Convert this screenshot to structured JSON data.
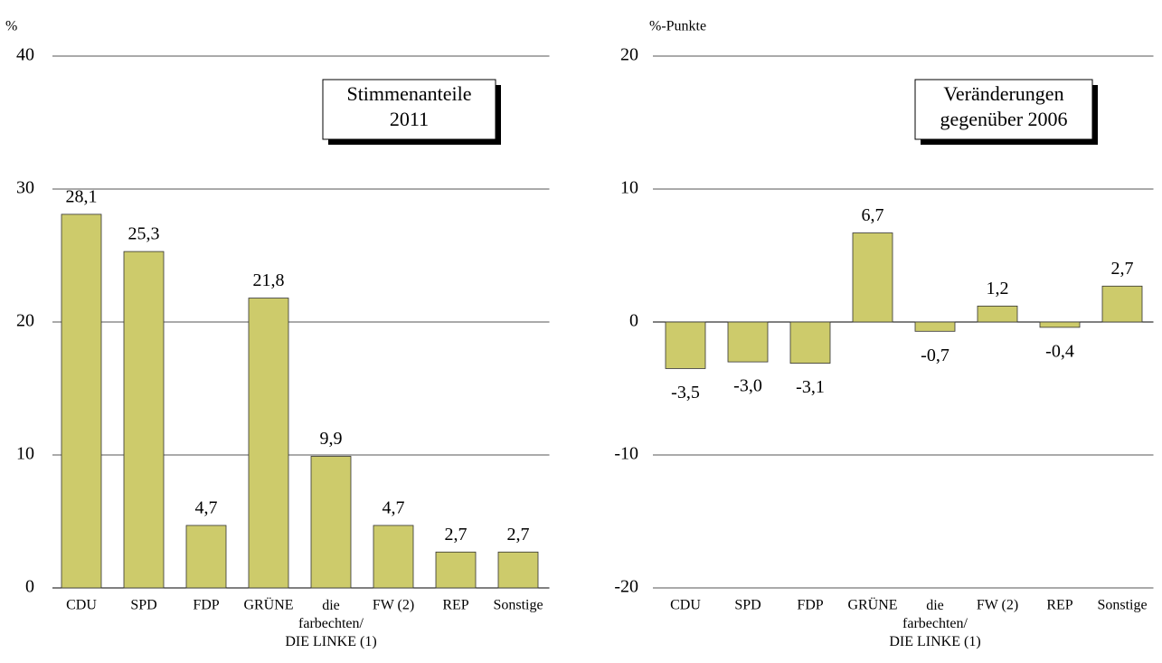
{
  "chart_data": [
    {
      "type": "bar",
      "ylabel": "%",
      "annotation": "Stimmenanteile\n2011",
      "categories": [
        "CDU",
        "SPD",
        "FDP",
        "GRÜNE",
        "die\nfarbechten/\nDIE LINKE (1)",
        "FW (2)",
        "REP",
        "Sonstige"
      ],
      "values": [
        28.1,
        25.3,
        4.7,
        21.8,
        9.9,
        4.7,
        2.7,
        2.7
      ],
      "value_labels": [
        "28,1",
        "25,3",
        "4,7",
        "21,8",
        "9,9",
        "4,7",
        "2,7",
        "2,7"
      ],
      "color": "#cdcb6b",
      "ylim": [
        0,
        40
      ],
      "yticks": [
        0,
        10,
        20,
        30,
        40
      ],
      "grid": true
    },
    {
      "type": "bar",
      "ylabel": "%-Punkte",
      "annotation": "Veränderungen\ngegenüber 2006",
      "categories": [
        "CDU",
        "SPD",
        "FDP",
        "GRÜNE",
        "die\nfarbechten/\nDIE LINKE (1)",
        "FW (2)",
        "REP",
        "Sonstige"
      ],
      "values": [
        -3.5,
        -3.0,
        -3.1,
        6.7,
        -0.7,
        1.2,
        -0.4,
        2.7
      ],
      "value_labels": [
        "-3,5",
        "-3,0",
        "-3,1",
        "6,7",
        "-0,7",
        "1,2",
        "-0,4",
        "2,7"
      ],
      "color": "#cdcb6b",
      "ylim": [
        -20,
        20
      ],
      "yticks": [
        -20,
        -10,
        0,
        10,
        20
      ],
      "grid": true
    }
  ]
}
